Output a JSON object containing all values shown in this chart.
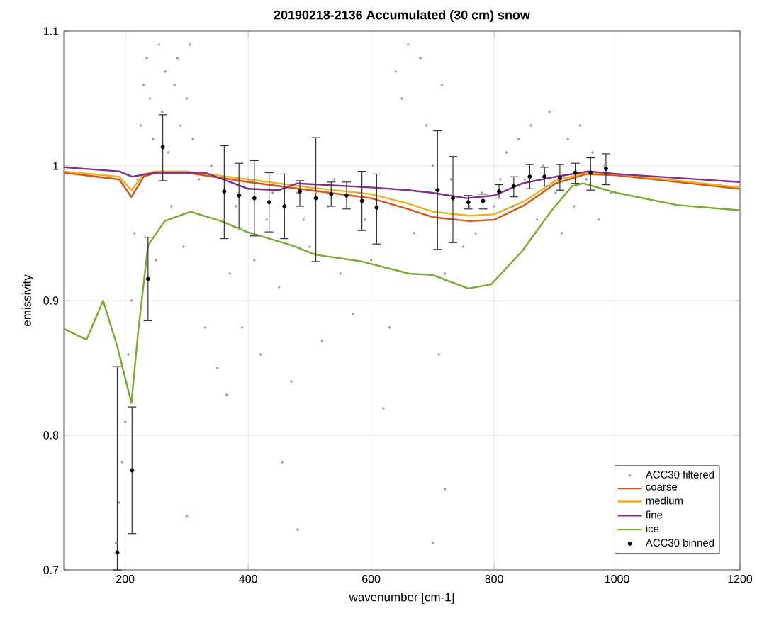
{
  "chart_data": {
    "type": "line",
    "title": "20190218-2136 Accumulated (30 cm) snow",
    "xlabel": "wavenumber [cm-1]",
    "ylabel": "emissivity",
    "xlim": [
      100,
      1200
    ],
    "ylim": [
      0.7,
      1.1
    ],
    "xticks": [
      200,
      400,
      600,
      800,
      1000,
      1200
    ],
    "yticks": [
      0.7,
      0.8,
      0.9,
      1,
      1.1
    ],
    "grid": true,
    "legend": "bottom right",
    "series": [
      {
        "name": "ACC30 filtered",
        "type": "scatter",
        "marker": "circle",
        "color": "#a0a0a0",
        "x": [
          185,
          190,
          195,
          200,
          205,
          210,
          215,
          220,
          225,
          230,
          235,
          240,
          245,
          250,
          255,
          260,
          265,
          270,
          275,
          280,
          285,
          290,
          295,
          300,
          305,
          310,
          320,
          330,
          340,
          350,
          360,
          365,
          370,
          380,
          390,
          400,
          410,
          420,
          430,
          440,
          450,
          460,
          470,
          480,
          490,
          500,
          510,
          520,
          530,
          540,
          550,
          560,
          570,
          580,
          590,
          600,
          610,
          620,
          630,
          640,
          650,
          660,
          670,
          680,
          690,
          700,
          710,
          715,
          720,
          730,
          740,
          750,
          760,
          770,
          780,
          790,
          800,
          810,
          820,
          830,
          840,
          850,
          860,
          870,
          880,
          890,
          900,
          910,
          920,
          930,
          940,
          950,
          960,
          970,
          980,
          990,
          455,
          480,
          720,
          700,
          300
        ],
        "values": [
          0.72,
          0.75,
          0.78,
          0.81,
          0.86,
          0.9,
          0.95,
          0.99,
          1.03,
          1.06,
          1.08,
          1.05,
          1.02,
          0.93,
          1.09,
          1.04,
          1.07,
          1.01,
          0.97,
          1.06,
          1.08,
          1.03,
          0.94,
          1.05,
          1.09,
          1.02,
          0.99,
          0.88,
          1.0,
          0.85,
          0.96,
          0.83,
          0.92,
          0.97,
          0.88,
          0.99,
          0.93,
          0.86,
          0.96,
          0.98,
          0.91,
          0.97,
          0.84,
          0.98,
          0.96,
          0.94,
          0.98,
          0.87,
          0.97,
          0.99,
          0.92,
          0.97,
          0.89,
          0.98,
          0.96,
          0.93,
          0.97,
          0.82,
          0.88,
          1.07,
          1.05,
          1.09,
          0.95,
          1.08,
          1.03,
          1.0,
          0.86,
          1.06,
          0.92,
          0.99,
          0.96,
          0.94,
          0.97,
          0.95,
          0.98,
          0.96,
          0.97,
          0.99,
          1.01,
          0.97,
          1.02,
          0.99,
          1.03,
          0.96,
          1.0,
          1.04,
          0.98,
          0.95,
          1.02,
          0.97,
          1.03,
          0.99,
          1.01,
          0.96,
          1.0,
          0.98,
          0.78,
          0.73,
          0.76,
          0.72,
          0.74
        ]
      },
      {
        "name": "coarse",
        "type": "line",
        "marker": "none",
        "color": "#d95319",
        "x": [
          100,
          190,
          210,
          230,
          250,
          300,
          400,
          500,
          600,
          660,
          700,
          760,
          800,
          850,
          900,
          950,
          1000,
          1200
        ],
        "values": [
          0.995,
          0.99,
          0.977,
          0.992,
          0.995,
          0.995,
          0.988,
          0.982,
          0.976,
          0.968,
          0.962,
          0.959,
          0.96,
          0.971,
          0.987,
          0.994,
          0.993,
          0.983
        ]
      },
      {
        "name": "medium",
        "type": "line",
        "marker": "none",
        "color": "#edb120",
        "x": [
          100,
          190,
          210,
          230,
          250,
          300,
          400,
          500,
          600,
          660,
          700,
          760,
          800,
          850,
          900,
          950,
          1000,
          1200
        ],
        "values": [
          0.996,
          0.992,
          0.982,
          0.994,
          0.996,
          0.996,
          0.99,
          0.984,
          0.979,
          0.972,
          0.966,
          0.963,
          0.964,
          0.974,
          0.989,
          0.995,
          0.994,
          0.984
        ]
      },
      {
        "name": "fine",
        "type": "line",
        "marker": "none",
        "color": "#7e2f8e",
        "x": [
          100,
          190,
          211,
          250,
          330,
          400,
          450,
          480,
          600,
          660,
          700,
          755,
          800,
          846,
          900,
          954,
          1000,
          1200
        ],
        "values": [
          0.999,
          0.996,
          0.992,
          0.995,
          0.995,
          0.983,
          0.982,
          0.987,
          0.984,
          0.982,
          0.98,
          0.976,
          0.978,
          0.987,
          0.992,
          0.996,
          0.994,
          0.988
        ]
      },
      {
        "name": "ice",
        "type": "line",
        "marker": "none",
        "color": "#77ac30",
        "x": [
          100,
          137,
          164,
          187,
          210,
          221,
          237,
          264,
          306,
          356,
          398,
          471,
          510,
          585,
          662,
          700,
          758,
          795,
          846,
          892,
          927,
          945,
          999,
          1097,
          1200
        ],
        "values": [
          0.879,
          0.871,
          0.9,
          0.866,
          0.824,
          0.877,
          0.941,
          0.959,
          0.966,
          0.959,
          0.951,
          0.941,
          0.934,
          0.929,
          0.92,
          0.919,
          0.909,
          0.912,
          0.937,
          0.966,
          0.985,
          0.987,
          0.98,
          0.971,
          0.967
        ]
      },
      {
        "name": "ACC30 binned",
        "type": "scatter",
        "marker": "circle",
        "color": "#000000",
        "x": [
          187,
          211,
          237,
          261,
          361,
          385,
          410,
          434,
          459,
          484,
          510,
          535,
          560,
          585,
          609,
          708,
          733,
          758,
          782,
          808,
          832,
          858,
          882,
          907,
          932,
          957,
          982
        ],
        "values": [
          0.713,
          0.774,
          0.916,
          1.014,
          0.981,
          0.978,
          0.976,
          0.973,
          0.97,
          0.981,
          0.976,
          0.979,
          0.978,
          0.974,
          0.969,
          0.982,
          0.976,
          0.973,
          0.974,
          0.981,
          0.985,
          0.992,
          0.992,
          0.991,
          0.995,
          0.995,
          0.998
        ],
        "errors": [
          [
            0.7,
            0.851
          ],
          [
            0.727,
            0.821
          ],
          [
            0.885,
            0.947
          ],
          [
            0.989,
            1.038
          ],
          [
            0.946,
            1.015
          ],
          [
            0.954,
            1.002
          ],
          [
            0.948,
            1.004
          ],
          [
            0.951,
            0.995
          ],
          [
            0.946,
            0.994
          ],
          [
            0.97,
            0.989
          ],
          [
            0.929,
            1.021
          ],
          [
            0.97,
            0.988
          ],
          [
            0.968,
            0.988
          ],
          [
            0.952,
            0.996
          ],
          [
            0.942,
            0.994
          ],
          [
            0.938,
            1.026
          ],
          [
            0.943,
            1.007
          ],
          [
            0.968,
            0.978
          ],
          [
            0.968,
            0.979
          ],
          [
            0.976,
            0.986
          ],
          [
            0.977,
            0.992
          ],
          [
            0.983,
            1.001
          ],
          [
            0.985,
            0.999
          ],
          [
            0.982,
            1.001
          ],
          [
            0.987,
            1.002
          ],
          [
            0.982,
            1.006
          ],
          [
            0.986,
            1.009
          ]
        ]
      }
    ]
  }
}
